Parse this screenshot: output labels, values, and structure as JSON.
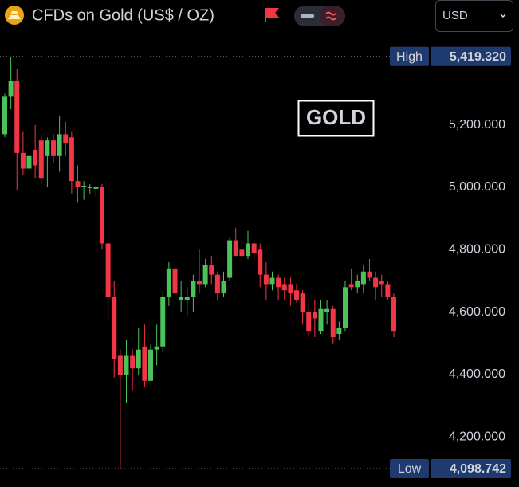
{
  "chart_data": {
    "type": "candlestick",
    "title": "CFDs on Gold (US$ / OZ)",
    "currency": "USD",
    "annotation": "GOLD",
    "up_color": "#4cc35a",
    "down_color": "#f23645",
    "ylim": [
      4040,
      5485
    ],
    "yticks": [
      {
        "value": 4200,
        "label": "4,200.000"
      },
      {
        "value": 4400,
        "label": "4,400.000"
      },
      {
        "value": 4600,
        "label": "4,600.000"
      },
      {
        "value": 4800,
        "label": "4,800.000"
      },
      {
        "value": 5000,
        "label": "5,000.000"
      },
      {
        "value": 5200,
        "label": "5,200.000"
      }
    ],
    "high_marker": {
      "text": "High",
      "value": 5419.32,
      "label": "5,419.320"
    },
    "low_marker": {
      "text": "Low",
      "value": 4098.742,
      "label": "4,098.742"
    },
    "open": [
      5170,
      5290,
      5340,
      5110,
      5060,
      5120,
      5150,
      5100,
      5150,
      5100,
      5170,
      5160,
      5020,
      5000,
      5000,
      4995,
      5000,
      4820,
      4650,
      4460,
      4400,
      4460,
      4420,
      4490,
      4380,
      4480,
      4490,
      4650,
      4740,
      4640,
      4640,
      4650,
      4700,
      4690,
      4750,
      4720,
      4660,
      4710,
      4830,
      4800,
      4780,
      4820,
      4800,
      4720,
      4690,
      4710,
      4690,
      4690,
      4670,
      4660,
      4600,
      4600,
      4540,
      4600,
      4610,
      4530,
      4550,
      4690,
      4680,
      4690,
      4730,
      4710,
      4700,
      4690,
      4650
    ],
    "high": [
      5300,
      5419.32,
      5380,
      5180,
      5130,
      5200,
      5170,
      5160,
      5170,
      5230,
      5210,
      5180,
      5070,
      5020,
      5010,
      5005,
      5010,
      4850,
      4700,
      4480,
      4510,
      4480,
      4550,
      4560,
      4500,
      4560,
      4660,
      4760,
      4760,
      4700,
      4680,
      4720,
      4800,
      4770,
      4780,
      4730,
      4730,
      4840,
      4870,
      4830,
      4860,
      4830,
      4820,
      4760,
      4730,
      4720,
      4710,
      4710,
      4690,
      4670,
      4630,
      4640,
      4640,
      4640,
      4620,
      4570,
      4700,
      4740,
      4720,
      4750,
      4770,
      4730,
      4720,
      4700,
      4660
    ],
    "low": [
      5160,
      5250,
      4990,
      5040,
      5040,
      5030,
      5010,
      5000,
      5080,
      5050,
      5100,
      4980,
      4950,
      4960,
      4980,
      4970,
      4800,
      4580,
      4390,
      4098.742,
      4310,
      4350,
      4400,
      4360,
      4380,
      4430,
      4470,
      4620,
      4600,
      4600,
      4590,
      4600,
      4660,
      4680,
      4690,
      4640,
      4650,
      4700,
      4780,
      4760,
      4770,
      4760,
      4680,
      4640,
      4670,
      4640,
      4640,
      4620,
      4630,
      4560,
      4520,
      4520,
      4530,
      4560,
      4500,
      4510,
      4540,
      4670,
      4660,
      4660,
      4700,
      4640,
      4650,
      4640,
      4520
    ],
    "close": [
      5290,
      5340,
      5110,
      5060,
      5100,
      5070,
      5030,
      5150,
      5100,
      5170,
      5140,
      5020,
      5000,
      5005,
      5000,
      5000,
      4820,
      4650,
      4450,
      4400,
      4460,
      4420,
      4480,
      4380,
      4480,
      4490,
      4650,
      4740,
      4660,
      4650,
      4650,
      4700,
      4690,
      4750,
      4720,
      4660,
      4700,
      4830,
      4780,
      4780,
      4820,
      4790,
      4720,
      4690,
      4710,
      4680,
      4670,
      4660,
      4640,
      4600,
      4540,
      4580,
      4610,
      4610,
      4520,
      4550,
      4680,
      4680,
      4700,
      4730,
      4710,
      4680,
      4690,
      4650,
      4540
    ]
  }
}
